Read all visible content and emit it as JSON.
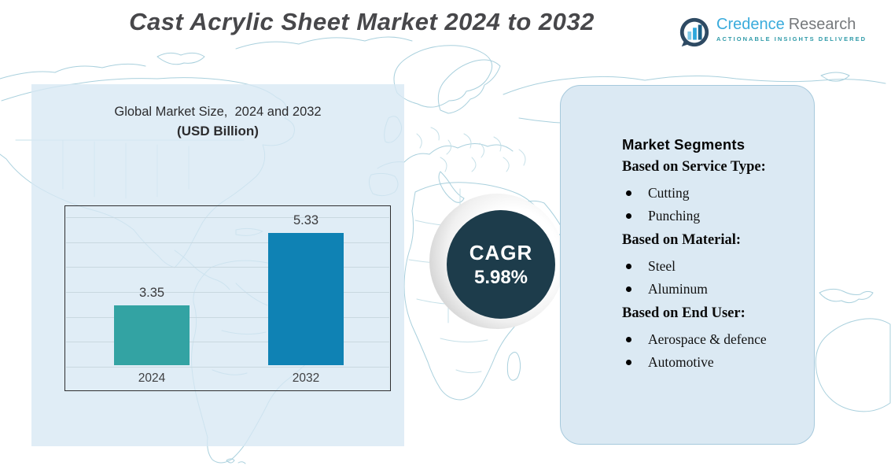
{
  "header": {
    "title": "Cast Acrylic Sheet Market 2024 to 2032",
    "logo": {
      "brand_primary": "Credence",
      "brand_secondary": "Research",
      "tagline": "ACTIONABLE INSIGHTS DELIVERED",
      "icon": "bar-chart-circle-icon"
    }
  },
  "chart_panel": {
    "title_line1": "Global Market Size,  2024 and 2032",
    "title_line2": "(USD Billion)"
  },
  "chart_data": {
    "type": "bar",
    "title": "Global Market Size, 2024 and 2032 (USD Billion)",
    "categories": [
      "2024",
      "2032"
    ],
    "values": [
      3.35,
      5.33
    ],
    "value_labels": [
      "3.35",
      "5.33"
    ],
    "bar_colors": [
      "#33a3a3",
      "#0f82b4"
    ],
    "ylim": [
      1.7,
      6.1
    ],
    "grid": true,
    "gridline_count": 7,
    "legend": "none",
    "ylabel": "USD Billion"
  },
  "cagr": {
    "label": "CAGR",
    "value": "5.98%"
  },
  "segments": {
    "heading": "Market Segments",
    "sections": [
      {
        "heading": "Based on Service Type:",
        "items": [
          "Cutting",
          "Punching"
        ]
      },
      {
        "heading": "Based on Material:",
        "items": [
          "Steel",
          "Aluminum"
        ]
      },
      {
        "heading": "Based on End User:",
        "items": [
          "Aerospace & defence",
          "Automotive"
        ]
      }
    ]
  },
  "colors": {
    "bar_2024": "#33a3a3",
    "bar_2032": "#0f82b4",
    "cagr_circle": "#1d3c4b",
    "panel_fill": "#dbe9f3",
    "panel_border": "#a6c9dc",
    "map_line": "#a9d0dd",
    "highlight_rect": "#d7e8f3"
  }
}
